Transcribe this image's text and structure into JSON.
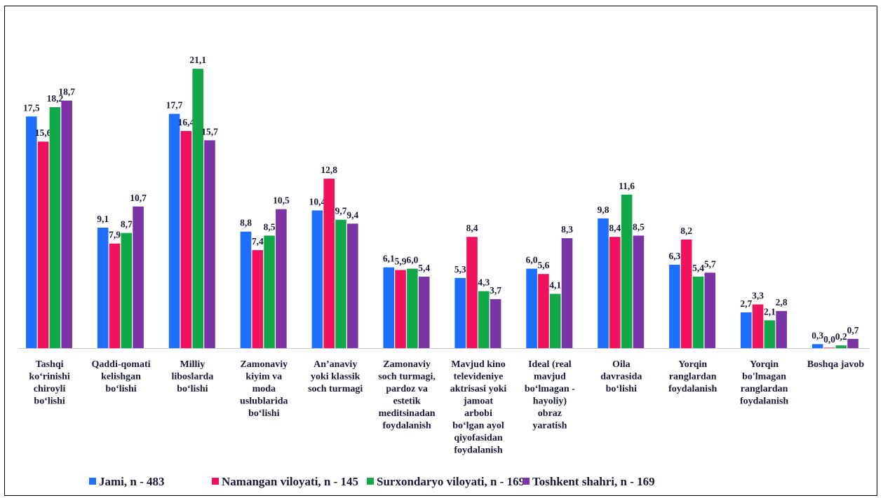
{
  "chart_data": {
    "type": "bar",
    "title": "",
    "xlabel": "",
    "ylabel": "",
    "ylim": [
      0,
      22
    ],
    "grid": false,
    "legend_position": "bottom",
    "categories": [
      [
        "Tashqi",
        "ko‘rinishi",
        "chiroyli",
        "bo‘lishi"
      ],
      [
        "Qaddi-qomati",
        "kelishgan",
        "bo‘lishi"
      ],
      [
        "Milliy",
        "liboslarda",
        "bo‘lishi"
      ],
      [
        "Zamonaviy",
        "kiyim va",
        "moda",
        "uslublarida",
        "bo‘lishi"
      ],
      [
        "An’anaviy",
        "yoki klassik",
        "soch turmagi"
      ],
      [
        "Zamonaviy",
        "soch turmagi,",
        "pardoz va",
        "estetik",
        "meditsinadan",
        "foydalanish"
      ],
      [
        "Mavjud kino",
        "televideniye",
        "aktrisasi yoki",
        "jamoat",
        "arbobi",
        "bo‘lgan ayol",
        "qiyofasidan",
        "foydalanish"
      ],
      [
        "Ideal (real",
        "mavjud",
        "bo‘lmagan -",
        "hayoliy)",
        "obraz",
        "yaratish"
      ],
      [
        "Oila",
        "davrasida",
        "bo‘lishi"
      ],
      [
        "Yorqin",
        "ranglardan",
        "foydalanish"
      ],
      [
        "Yorqin",
        "bo'lmagan",
        "ranglardan",
        "foydalanish"
      ],
      [
        "Boshqa javob"
      ]
    ],
    "series": [
      {
        "name": "Jami, n - 483",
        "color": "#1f6fff",
        "values": [
          17.5,
          9.1,
          17.7,
          8.8,
          10.4,
          6.1,
          5.3,
          6.0,
          9.8,
          6.3,
          2.7,
          0.3
        ],
        "labels": [
          "17,5",
          "9,1",
          "17,7",
          "8,8",
          "10,4",
          "6,1",
          "5,3",
          "6,0",
          "9,8",
          "6,3",
          "2,7",
          "0,3"
        ]
      },
      {
        "name": "Namangan viloyati, n - 145",
        "color": "#f0125c",
        "values": [
          15.6,
          7.9,
          16.4,
          7.4,
          12.8,
          5.9,
          8.4,
          5.6,
          8.4,
          8.2,
          3.3,
          0.0
        ],
        "labels": [
          "15,6",
          "7,9",
          "16,4",
          "7,4",
          "12,8",
          "5,9",
          "8,4",
          "5,6",
          "8,4",
          "8,2",
          "3,3",
          "0,0"
        ]
      },
      {
        "name": "Surxondaryo viloyati, n - 169",
        "color": "#12a84a",
        "values": [
          18.2,
          8.7,
          21.1,
          8.5,
          9.7,
          6.0,
          4.3,
          4.1,
          11.6,
          5.4,
          2.1,
          0.2
        ],
        "labels": [
          "18,2",
          "8,7",
          "21,1",
          "8,5",
          "9,7",
          "6,0",
          "4,3",
          "4,1",
          "11,6",
          "5,4",
          "2,1",
          "0,2"
        ]
      },
      {
        "name": "Toshkent shahri, n - 169",
        "color": "#7a34a6",
        "values": [
          18.7,
          10.7,
          15.7,
          10.5,
          9.4,
          5.4,
          3.7,
          8.3,
          8.5,
          5.7,
          2.8,
          0.7
        ],
        "labels": [
          "18,7",
          "10,7",
          "15,7",
          "10,5",
          "9,4",
          "5,4",
          "3,7",
          "8,3",
          "8,5",
          "5,7",
          "2,8",
          "0,7"
        ]
      }
    ]
  }
}
